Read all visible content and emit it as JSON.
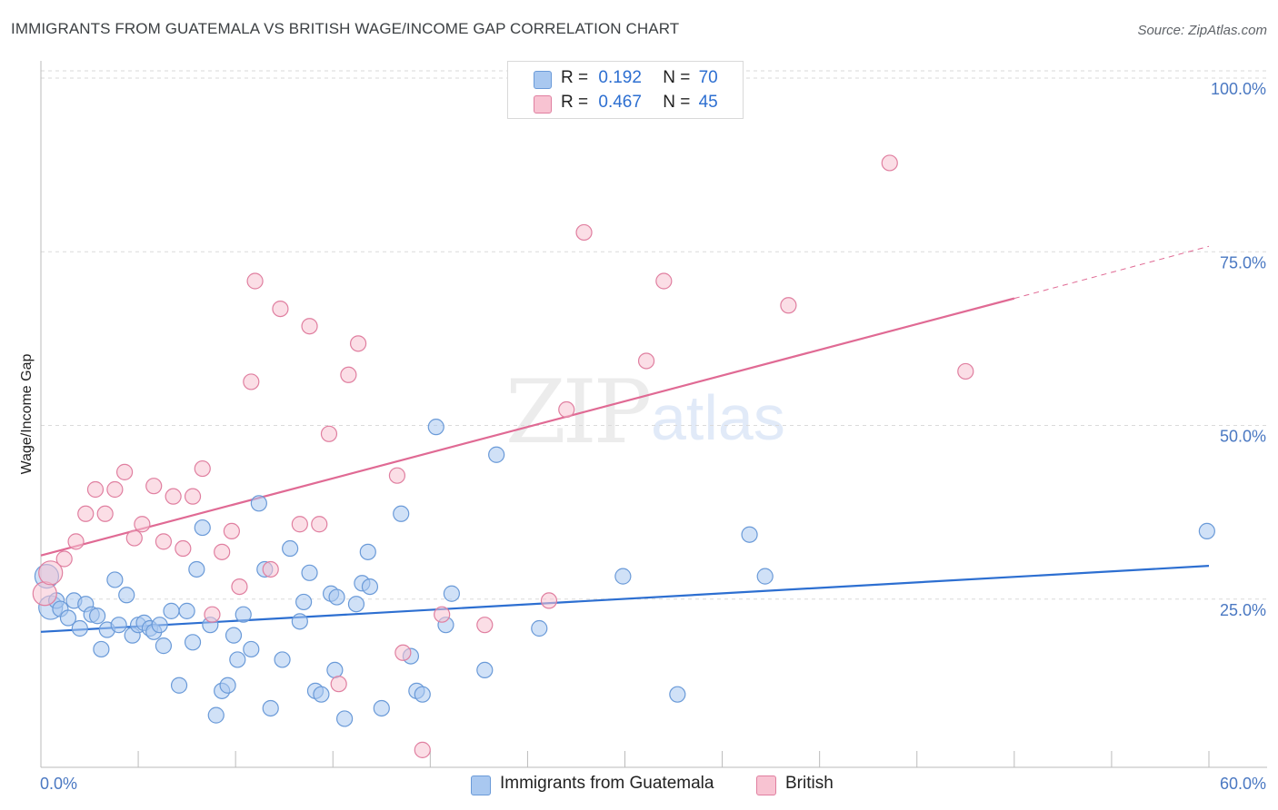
{
  "title": "IMMIGRANTS FROM GUATEMALA VS BRITISH WAGE/INCOME GAP CORRELATION CHART",
  "source": "Source: ZipAtlas.com",
  "watermark": {
    "zip": "ZIP",
    "atlas": "atlas"
  },
  "legend": {
    "rows": [
      {
        "r_label": "R =",
        "r_value": "0.192",
        "n_label": "N =",
        "n_value": "70",
        "color": "#a9c8f0",
        "border": "#6a9ad8"
      },
      {
        "r_label": "R =",
        "r_value": "0.467",
        "n_label": "N =",
        "n_value": "45",
        "color": "#f8c3d2",
        "border": "#e07fa0"
      }
    ]
  },
  "bottom_legend": [
    {
      "label": "Immigrants from Guatemala",
      "color": "#a9c8f0",
      "border": "#6a9ad8"
    },
    {
      "label": "British",
      "color": "#f8c3d2",
      "border": "#e07fa0"
    }
  ],
  "chart_data": {
    "type": "scatter",
    "title": "IMMIGRANTS FROM GUATEMALA VS BRITISH WAGE/INCOME GAP CORRELATION CHART",
    "xlabel": "",
    "ylabel": "Wage/Income Gap",
    "xlim": [
      0,
      60
    ],
    "ylim": [
      0,
      105
    ],
    "x_tick_labels": [
      "0.0%",
      "60.0%"
    ],
    "y_ticks": [
      25,
      50,
      75,
      100
    ],
    "y_tick_labels": [
      "25.0%",
      "50.0%",
      "75.0%",
      "100.0%"
    ],
    "grid": true,
    "series": [
      {
        "name": "Immigrants from Guatemala",
        "color": "#6a9ad8",
        "fill": "#a9c8f0",
        "trend": {
          "x": [
            0,
            60
          ],
          "y": [
            19.5,
            29.0
          ]
        },
        "points": [
          [
            0.3,
            27.5
          ],
          [
            0.5,
            23.0
          ],
          [
            0.8,
            24.0
          ],
          [
            1.0,
            22.8
          ],
          [
            1.4,
            21.5
          ],
          [
            1.7,
            24.0
          ],
          [
            2.0,
            20.0
          ],
          [
            2.3,
            23.5
          ],
          [
            2.6,
            22.0
          ],
          [
            2.9,
            21.8
          ],
          [
            3.1,
            17.0
          ],
          [
            3.4,
            19.8
          ],
          [
            3.8,
            27.0
          ],
          [
            4.0,
            20.5
          ],
          [
            4.4,
            24.8
          ],
          [
            4.7,
            19.0
          ],
          [
            5.0,
            20.5
          ],
          [
            5.3,
            20.8
          ],
          [
            5.6,
            20.0
          ],
          [
            5.8,
            19.5
          ],
          [
            6.1,
            20.5
          ],
          [
            6.3,
            17.5
          ],
          [
            6.7,
            22.5
          ],
          [
            7.1,
            11.8
          ],
          [
            7.5,
            22.5
          ],
          [
            7.8,
            18.0
          ],
          [
            8.0,
            28.5
          ],
          [
            8.3,
            34.5
          ],
          [
            8.7,
            20.5
          ],
          [
            9.0,
            7.5
          ],
          [
            9.3,
            11.0
          ],
          [
            9.6,
            11.8
          ],
          [
            9.9,
            19.0
          ],
          [
            10.1,
            15.5
          ],
          [
            10.4,
            22.0
          ],
          [
            10.8,
            17.0
          ],
          [
            11.2,
            38.0
          ],
          [
            11.5,
            28.5
          ],
          [
            11.8,
            8.5
          ],
          [
            12.4,
            15.5
          ],
          [
            12.8,
            31.5
          ],
          [
            13.3,
            21.0
          ],
          [
            13.5,
            23.8
          ],
          [
            13.8,
            28.0
          ],
          [
            14.1,
            11.0
          ],
          [
            14.4,
            10.5
          ],
          [
            14.9,
            25.0
          ],
          [
            15.1,
            14.0
          ],
          [
            15.2,
            24.5
          ],
          [
            15.6,
            7.0
          ],
          [
            16.2,
            23.5
          ],
          [
            16.5,
            26.5
          ],
          [
            16.8,
            31.0
          ],
          [
            16.9,
            26.0
          ],
          [
            17.5,
            8.5
          ],
          [
            18.5,
            36.5
          ],
          [
            19.0,
            16.0
          ],
          [
            19.3,
            11.0
          ],
          [
            19.6,
            10.5
          ],
          [
            20.3,
            49.0
          ],
          [
            20.8,
            20.5
          ],
          [
            21.1,
            25.0
          ],
          [
            22.8,
            14.0
          ],
          [
            23.4,
            45.0
          ],
          [
            25.6,
            20.0
          ],
          [
            29.9,
            27.5
          ],
          [
            32.7,
            10.5
          ],
          [
            36.4,
            33.5
          ],
          [
            37.2,
            27.5
          ],
          [
            59.9,
            34.0
          ]
        ]
      },
      {
        "name": "British",
        "color": "#e07fa0",
        "fill": "#f8c3d2",
        "trend": {
          "x": [
            0,
            50
          ],
          "y": [
            30.5,
            67.5
          ],
          "dash_to": {
            "x": 60,
            "y": 75.0
          }
        },
        "points": [
          [
            0.2,
            25.0
          ],
          [
            0.5,
            28.0
          ],
          [
            1.2,
            30.0
          ],
          [
            1.8,
            32.5
          ],
          [
            2.3,
            36.5
          ],
          [
            2.8,
            40.0
          ],
          [
            3.3,
            36.5
          ],
          [
            3.8,
            40.0
          ],
          [
            4.3,
            42.5
          ],
          [
            4.8,
            33.0
          ],
          [
            5.2,
            35.0
          ],
          [
            5.8,
            40.5
          ],
          [
            6.3,
            32.5
          ],
          [
            6.8,
            39.0
          ],
          [
            7.3,
            31.5
          ],
          [
            7.8,
            39.0
          ],
          [
            8.3,
            43.0
          ],
          [
            8.8,
            22.0
          ],
          [
            9.3,
            31.0
          ],
          [
            9.8,
            34.0
          ],
          [
            10.2,
            26.0
          ],
          [
            10.8,
            55.5
          ],
          [
            11.0,
            70.0
          ],
          [
            11.8,
            28.5
          ],
          [
            12.3,
            66.0
          ],
          [
            13.3,
            35.0
          ],
          [
            13.8,
            63.5
          ],
          [
            14.3,
            35.0
          ],
          [
            14.8,
            48.0
          ],
          [
            15.3,
            12.0
          ],
          [
            15.8,
            56.5
          ],
          [
            16.3,
            61.0
          ],
          [
            18.3,
            42.0
          ],
          [
            18.6,
            16.5
          ],
          [
            19.6,
            2.5
          ],
          [
            20.6,
            22.0
          ],
          [
            22.8,
            20.5
          ],
          [
            26.1,
            24.0
          ],
          [
            27.0,
            51.5
          ],
          [
            27.9,
            77.0
          ],
          [
            31.1,
            58.5
          ],
          [
            32.0,
            70.0
          ],
          [
            38.4,
            66.5
          ],
          [
            43.6,
            87.0
          ],
          [
            47.5,
            57.0
          ]
        ]
      }
    ]
  }
}
